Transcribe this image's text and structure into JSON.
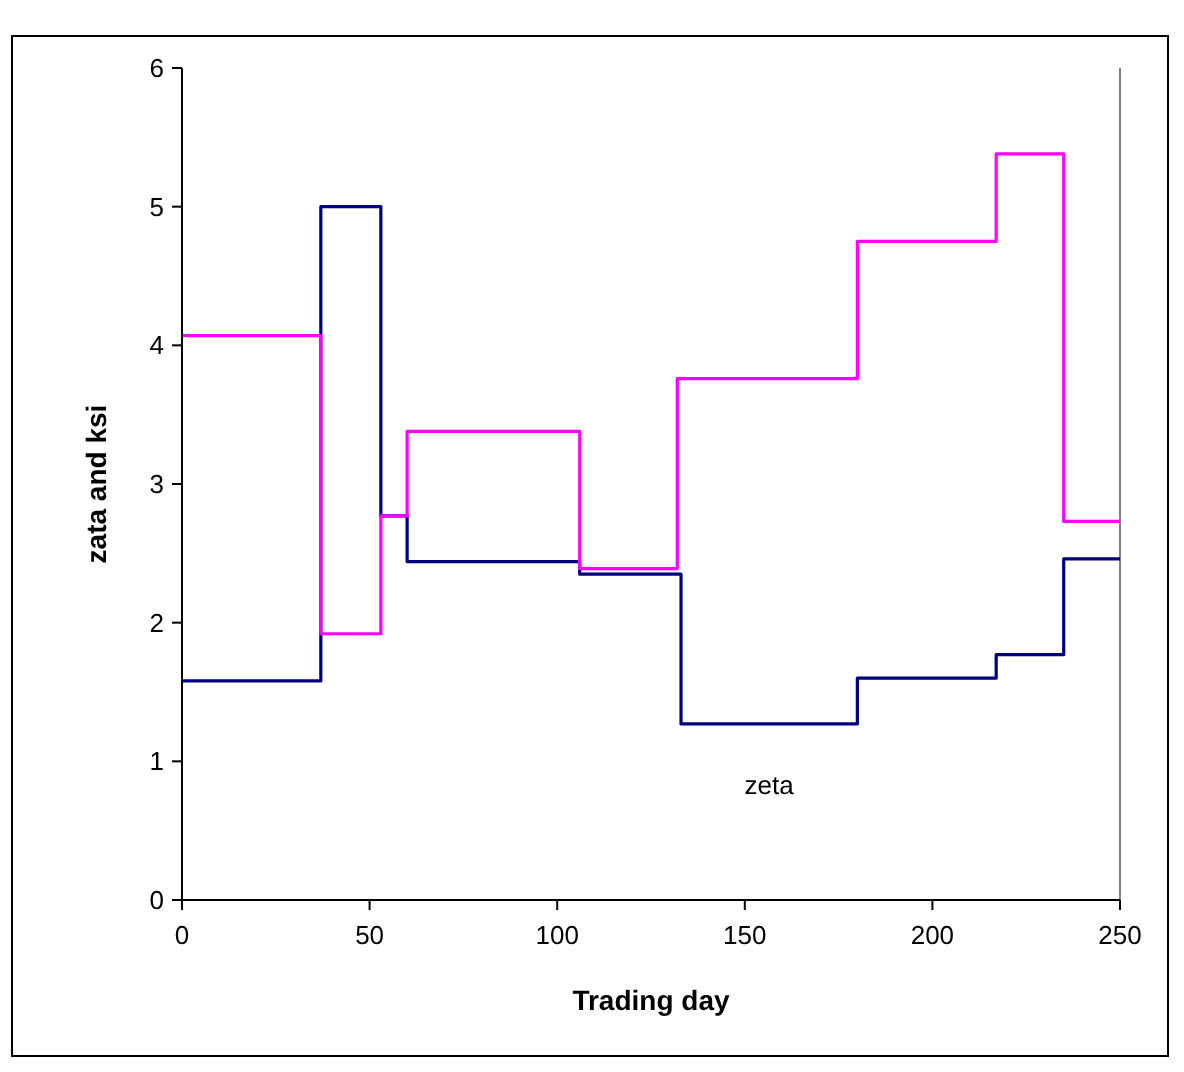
{
  "chart_data": {
    "type": "step",
    "xlabel": "Trading day",
    "ylabel": "zata and ksi",
    "xlim": [
      0,
      250
    ],
    "ylim": [
      0,
      6
    ],
    "xticks": [
      0,
      50,
      100,
      150,
      200,
      250
    ],
    "yticks": [
      0,
      1,
      2,
      3,
      4,
      5,
      6
    ],
    "grid": false,
    "marker": "none",
    "line_style": "solid",
    "series": [
      {
        "name": "zeta",
        "color": "#000080",
        "x": [
          0,
          37,
          53,
          60,
          106,
          133,
          180,
          217,
          235,
          250
        ],
        "values": [
          1.58,
          5.0,
          2.77,
          2.44,
          2.35,
          1.27,
          1.6,
          1.77,
          2.46,
          2.46
        ]
      },
      {
        "color": "#ff00ff",
        "x": [
          0,
          37,
          53,
          60,
          106,
          132,
          180,
          217,
          235,
          250
        ],
        "values": [
          4.07,
          1.92,
          2.77,
          3.38,
          2.39,
          3.76,
          4.75,
          5.38,
          2.73,
          2.73
        ]
      }
    ]
  }
}
